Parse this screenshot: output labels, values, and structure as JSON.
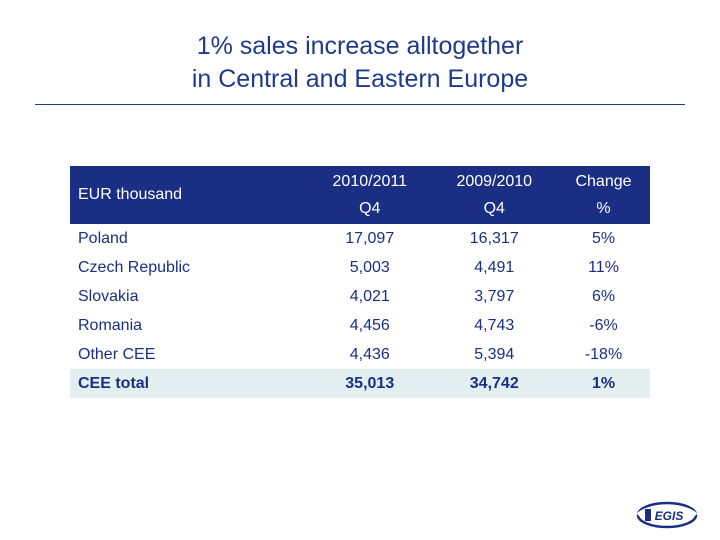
{
  "title": {
    "line1": "1% sales increase alltogether",
    "line2": "in Central and Eastern Europe"
  },
  "table": {
    "headers": {
      "label": "EUR thousand",
      "col1_line1": "2010/2011",
      "col1_line2": "Q4",
      "col2_line1": "2009/2010",
      "col2_line2": "Q4",
      "col3_line1": "Change",
      "col3_line2": "%"
    },
    "rows": [
      {
        "label": "Poland",
        "v1": "17,097",
        "v2": "16,317",
        "change": "5%"
      },
      {
        "label": "Czech Republic",
        "v1": "5,003",
        "v2": "4,491",
        "change": "11%"
      },
      {
        "label": "Slovakia",
        "v1": "4,021",
        "v2": "3,797",
        "change": "6%"
      },
      {
        "label": "Romania",
        "v1": "4,456",
        "v2": "4,743",
        "change": "-6%"
      },
      {
        "label": "Other CEE",
        "v1": "4,436",
        "v2": "5,394",
        "change": "-18%"
      }
    ],
    "total": {
      "label": "CEE total",
      "v1": "35,013",
      "v2": "34,742",
      "change": "1%"
    }
  },
  "logo": {
    "text": "EGIS",
    "icon": "egis-logo-icon"
  },
  "colors": {
    "title": "#1f3a8a",
    "header_bg": "#1a2f84",
    "total_bg": "#e3eef0"
  }
}
